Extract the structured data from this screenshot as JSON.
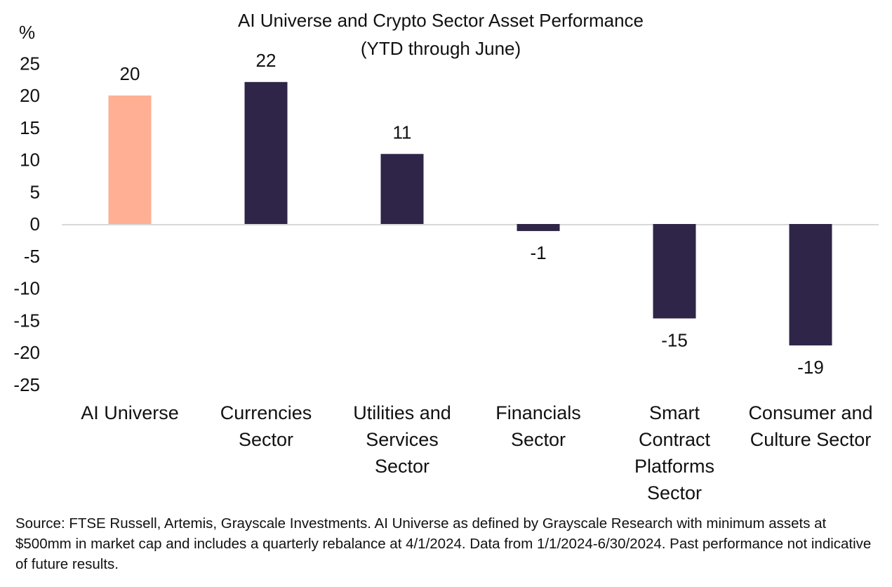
{
  "chart_data": {
    "type": "bar",
    "title": "AI Universe and Crypto Sector Asset Performance",
    "subtitle": "(YTD through June)",
    "ylabel": "%",
    "xlabel": "",
    "categories": [
      "AI Universe",
      "Currencies Sector",
      "Utilities and Services Sector",
      "Financials Sector",
      "Smart Contract Platforms Sector",
      "Consumer and Culture Sector"
    ],
    "values": [
      20.0,
      22.1,
      10.9,
      -1.1,
      -14.7,
      -18.9
    ],
    "data_labels": [
      "20",
      "22",
      "11",
      "-1",
      "-15",
      "-19"
    ],
    "colors": [
      "#FFAF94",
      "#2E2548",
      "#2E2548",
      "#2E2548",
      "#2E2548",
      "#2E2548"
    ],
    "ylim": [
      -25,
      25
    ],
    "yticks": [
      25,
      20,
      15,
      10,
      5,
      0,
      -5,
      -10,
      -15,
      -20,
      -25
    ],
    "grid": false,
    "legend": "none",
    "zero_line_color": "#D9D9D9"
  },
  "source": "Source: FTSE Russell, Artemis, Grayscale Investments. AI Universe as defined by Grayscale Research with minimum assets at $500mm in market cap and includes a quarterly rebalance at 4/1/2024. Data from 1/1/2024-6/30/2024. Past performance not indicative of future results."
}
